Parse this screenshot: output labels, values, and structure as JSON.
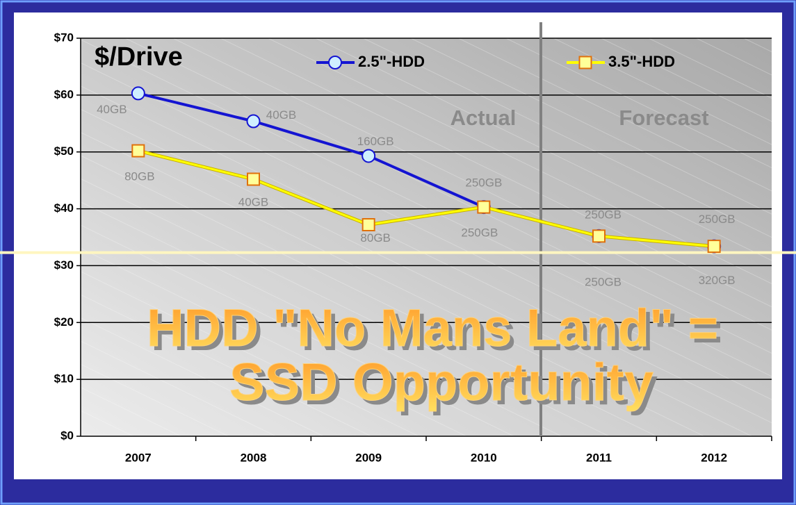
{
  "chart_data": {
    "type": "line",
    "title": "$/Drive",
    "categories": [
      "2007",
      "2008",
      "2009",
      "2010",
      "2011",
      "2012"
    ],
    "series": [
      {
        "name": "2.5\"-HDD",
        "color": "#1414d2",
        "marker": "circle",
        "marker_fill": "#cfefff",
        "marker_stroke": "#1414d2",
        "values": [
          60.3,
          55.4,
          49.3,
          40.3,
          35.2,
          33.4
        ],
        "value_labels": [
          "40GB",
          "40GB",
          "160GB",
          "250GB",
          "250GB",
          "250GB"
        ]
      },
      {
        "name": "3.5\"-HDD",
        "color": "#ffff00",
        "marker": "square",
        "marker_fill": "#ffff99",
        "marker_stroke": "#e0700a",
        "values": [
          50.2,
          45.2,
          37.2,
          40.3,
          35.2,
          33.4
        ],
        "value_labels": [
          "80GB",
          "40GB",
          "80GB",
          "250GB",
          "250GB",
          "320GB"
        ]
      }
    ],
    "ylim": [
      0,
      70
    ],
    "yticks": [
      {
        "value": 0,
        "label": "$0"
      },
      {
        "value": 10,
        "label": "$10"
      },
      {
        "value": 20,
        "label": "$20"
      },
      {
        "value": 30,
        "label": "$30"
      },
      {
        "value": 40,
        "label": "$40"
      },
      {
        "value": 50,
        "label": "$50"
      },
      {
        "value": 60,
        "label": "$60"
      },
      {
        "value": 70,
        "label": "$70"
      }
    ],
    "grid": true,
    "threshold_line": 32.3,
    "annotations": {
      "actual": "Actual",
      "forecast": "Forecast",
      "headline": [
        "HDD \"No Mans Land\" =",
        "SSD Opportunity"
      ]
    }
  }
}
